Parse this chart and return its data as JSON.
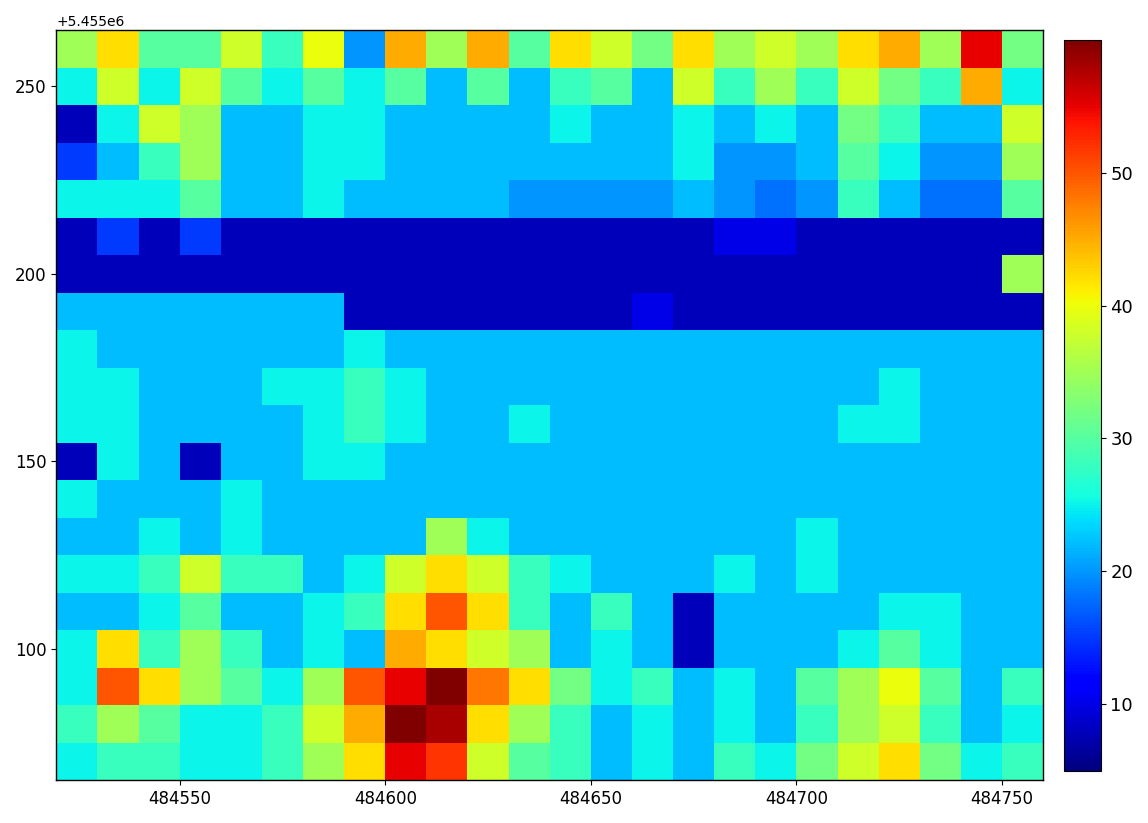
{
  "x_min": 484520,
  "x_max": 484760,
  "y_min": 5455065,
  "y_max": 5455265,
  "cell_size": 10,
  "vmin": 5,
  "vmax": 60,
  "colorbar_ticks": [
    10,
    20,
    30,
    40,
    50
  ],
  "colormap": "jet",
  "ncols": 24,
  "nrows": 20,
  "grid_data": [
    [
      35,
      42,
      30,
      30,
      38,
      28,
      40,
      20,
      45,
      35,
      45,
      30,
      42,
      38,
      32,
      42,
      35,
      38,
      35,
      42,
      45,
      35,
      55,
      32
    ],
    [
      25,
      38,
      25,
      38,
      30,
      25,
      30,
      25,
      30,
      22,
      30,
      22,
      28,
      30,
      22,
      38,
      28,
      35,
      28,
      38,
      32,
      28,
      45,
      25
    ],
    [
      8,
      25,
      38,
      35,
      22,
      22,
      25,
      25,
      22,
      22,
      22,
      22,
      25,
      22,
      22,
      25,
      22,
      25,
      22,
      32,
      28,
      22,
      22,
      38
    ],
    [
      15,
      22,
      28,
      35,
      22,
      22,
      25,
      25,
      22,
      22,
      22,
      22,
      22,
      22,
      22,
      25,
      20,
      20,
      22,
      30,
      25,
      20,
      20,
      35
    ],
    [
      25,
      25,
      25,
      30,
      22,
      22,
      25,
      22,
      22,
      22,
      22,
      20,
      20,
      20,
      20,
      22,
      20,
      18,
      20,
      28,
      22,
      18,
      18,
      30
    ],
    [
      8,
      15,
      8,
      15,
      8,
      8,
      8,
      8,
      8,
      8,
      8,
      8,
      8,
      8,
      8,
      8,
      10,
      10,
      8,
      8,
      8,
      8,
      8,
      8
    ],
    [
      8,
      8,
      8,
      8,
      8,
      8,
      8,
      8,
      8,
      8,
      8,
      8,
      8,
      8,
      8,
      8,
      8,
      8,
      8,
      8,
      8,
      8,
      8,
      35
    ],
    [
      22,
      22,
      22,
      22,
      22,
      22,
      22,
      8,
      8,
      8,
      8,
      8,
      8,
      8,
      10,
      8,
      8,
      8,
      8,
      8,
      8,
      8,
      8,
      8
    ],
    [
      25,
      22,
      22,
      22,
      22,
      22,
      22,
      25,
      22,
      22,
      22,
      22,
      22,
      22,
      22,
      22,
      22,
      22,
      22,
      22,
      22,
      22,
      22,
      22
    ],
    [
      25,
      25,
      22,
      22,
      22,
      25,
      25,
      28,
      25,
      22,
      22,
      22,
      22,
      22,
      22,
      22,
      22,
      22,
      22,
      22,
      25,
      22,
      22,
      22
    ],
    [
      25,
      25,
      22,
      22,
      22,
      22,
      25,
      28,
      25,
      22,
      22,
      25,
      22,
      22,
      22,
      22,
      22,
      22,
      22,
      25,
      25,
      22,
      22,
      22
    ],
    [
      8,
      25,
      22,
      8,
      22,
      22,
      25,
      25,
      22,
      22,
      22,
      22,
      22,
      22,
      22,
      22,
      22,
      22,
      22,
      22,
      22,
      22,
      22,
      22
    ],
    [
      25,
      22,
      22,
      22,
      25,
      22,
      22,
      22,
      22,
      22,
      22,
      22,
      22,
      22,
      22,
      22,
      22,
      22,
      22,
      22,
      22,
      22,
      22,
      22
    ],
    [
      22,
      22,
      25,
      22,
      25,
      22,
      22,
      22,
      22,
      35,
      25,
      22,
      22,
      22,
      22,
      22,
      22,
      22,
      25,
      22,
      22,
      22,
      22,
      22
    ],
    [
      25,
      25,
      28,
      38,
      28,
      28,
      22,
      25,
      38,
      42,
      38,
      28,
      25,
      22,
      22,
      22,
      25,
      22,
      25,
      22,
      22,
      22,
      22,
      22
    ],
    [
      22,
      22,
      25,
      30,
      22,
      22,
      25,
      28,
      42,
      50,
      42,
      28,
      22,
      28,
      22,
      8,
      22,
      22,
      22,
      22,
      25,
      25,
      22,
      22
    ],
    [
      25,
      42,
      28,
      35,
      28,
      22,
      25,
      22,
      45,
      42,
      38,
      35,
      22,
      25,
      22,
      8,
      22,
      22,
      22,
      25,
      30,
      25,
      22,
      22
    ],
    [
      25,
      50,
      42,
      35,
      30,
      25,
      35,
      50,
      55,
      60,
      48,
      42,
      32,
      25,
      28,
      22,
      25,
      22,
      30,
      35,
      40,
      30,
      22,
      28
    ],
    [
      28,
      35,
      30,
      25,
      25,
      28,
      38,
      45,
      60,
      58,
      42,
      35,
      28,
      22,
      25,
      22,
      25,
      22,
      28,
      35,
      38,
      28,
      22,
      25
    ],
    [
      25,
      28,
      28,
      25,
      25,
      28,
      35,
      42,
      55,
      52,
      38,
      30,
      28,
      22,
      25,
      22,
      28,
      25,
      32,
      38,
      42,
      32,
      25,
      28
    ]
  ]
}
